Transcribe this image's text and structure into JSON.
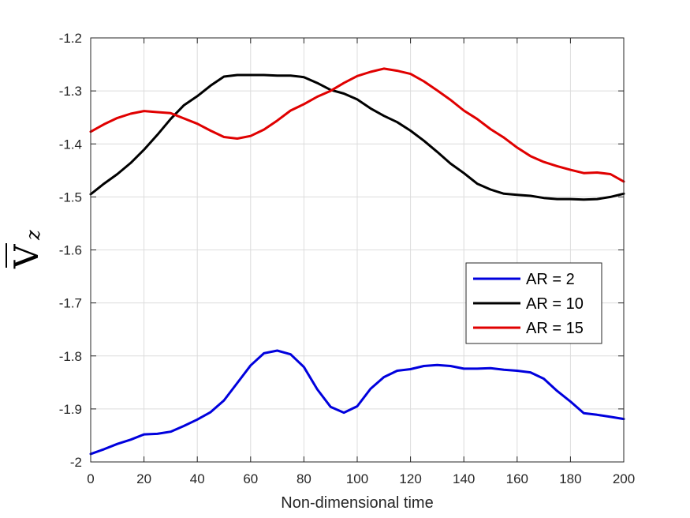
{
  "chart_data": {
    "type": "line",
    "xlabel": "Non-dimensional time",
    "ylabel": "V",
    "ylabel_subscript": "z",
    "ylabel_overbar": true,
    "xlim": [
      0,
      200
    ],
    "ylim": [
      -2,
      -1.2
    ],
    "xticks": [
      0,
      20,
      40,
      60,
      80,
      100,
      120,
      140,
      160,
      180,
      200
    ],
    "yticks": [
      -2,
      -1.9,
      -1.8,
      -1.7,
      -1.6,
      -1.5,
      -1.4,
      -1.3,
      -1.2
    ],
    "ytick_labels": [
      "-2",
      "-1.9",
      "-1.8",
      "-1.7",
      "-1.6",
      "-1.5",
      "-1.4",
      "-1.3",
      "-1.2"
    ],
    "grid": true,
    "legend_position": "center-right",
    "series": [
      {
        "name": "AR = 2",
        "color": "#0000dd",
        "x": [
          0,
          5,
          10,
          15,
          20,
          25,
          30,
          35,
          40,
          45,
          50,
          55,
          60,
          65,
          70,
          75,
          80,
          85,
          90,
          95,
          100,
          105,
          110,
          115,
          120,
          125,
          130,
          135,
          140,
          145,
          150,
          155,
          160,
          165,
          170,
          175,
          180,
          185,
          190,
          195,
          200
        ],
        "y": [
          -1.985,
          -1.976,
          -1.966,
          -1.958,
          -1.948,
          -1.947,
          -1.943,
          -1.932,
          -1.92,
          -1.906,
          -1.884,
          -1.851,
          -1.818,
          -1.795,
          -1.79,
          -1.797,
          -1.821,
          -1.863,
          -1.896,
          -1.907,
          -1.895,
          -1.862,
          -1.84,
          -1.828,
          -1.825,
          -1.819,
          -1.817,
          -1.819,
          -1.824,
          -1.824,
          -1.823,
          -1.826,
          -1.828,
          -1.831,
          -1.843,
          -1.866,
          -1.886,
          -1.908,
          -1.911,
          -1.915,
          -1.919
        ]
      },
      {
        "name": "AR = 10",
        "color": "#000000",
        "x": [
          0,
          5,
          10,
          15,
          20,
          25,
          30,
          35,
          40,
          45,
          50,
          55,
          60,
          65,
          70,
          75,
          80,
          85,
          90,
          95,
          100,
          105,
          110,
          115,
          120,
          125,
          130,
          135,
          140,
          145,
          150,
          155,
          160,
          165,
          170,
          175,
          180,
          185,
          190,
          195,
          200
        ],
        "y": [
          -1.495,
          -1.475,
          -1.457,
          -1.436,
          -1.411,
          -1.383,
          -1.353,
          -1.327,
          -1.31,
          -1.29,
          -1.273,
          -1.27,
          -1.27,
          -1.27,
          -1.271,
          -1.271,
          -1.274,
          -1.285,
          -1.298,
          -1.305,
          -1.316,
          -1.333,
          -1.347,
          -1.359,
          -1.375,
          -1.394,
          -1.415,
          -1.437,
          -1.455,
          -1.475,
          -1.486,
          -1.494,
          -1.496,
          -1.498,
          -1.502,
          -1.504,
          -1.504,
          -1.505,
          -1.504,
          -1.5,
          -1.494
        ]
      },
      {
        "name": "AR = 15",
        "color": "#e00000",
        "x": [
          0,
          5,
          10,
          15,
          20,
          25,
          30,
          35,
          40,
          45,
          50,
          55,
          60,
          65,
          70,
          75,
          80,
          85,
          90,
          95,
          100,
          105,
          110,
          115,
          120,
          125,
          130,
          135,
          140,
          145,
          150,
          155,
          160,
          165,
          170,
          175,
          180,
          185,
          190,
          195,
          200
        ],
        "y": [
          -1.377,
          -1.363,
          -1.351,
          -1.343,
          -1.338,
          -1.34,
          -1.342,
          -1.352,
          -1.362,
          -1.375,
          -1.387,
          -1.39,
          -1.385,
          -1.373,
          -1.356,
          -1.337,
          -1.325,
          -1.311,
          -1.3,
          -1.285,
          -1.272,
          -1.264,
          -1.258,
          -1.262,
          -1.268,
          -1.282,
          -1.299,
          -1.317,
          -1.337,
          -1.353,
          -1.372,
          -1.388,
          -1.407,
          -1.423,
          -1.434,
          -1.442,
          -1.449,
          -1.455,
          -1.454,
          -1.457,
          -1.471
        ]
      }
    ]
  }
}
